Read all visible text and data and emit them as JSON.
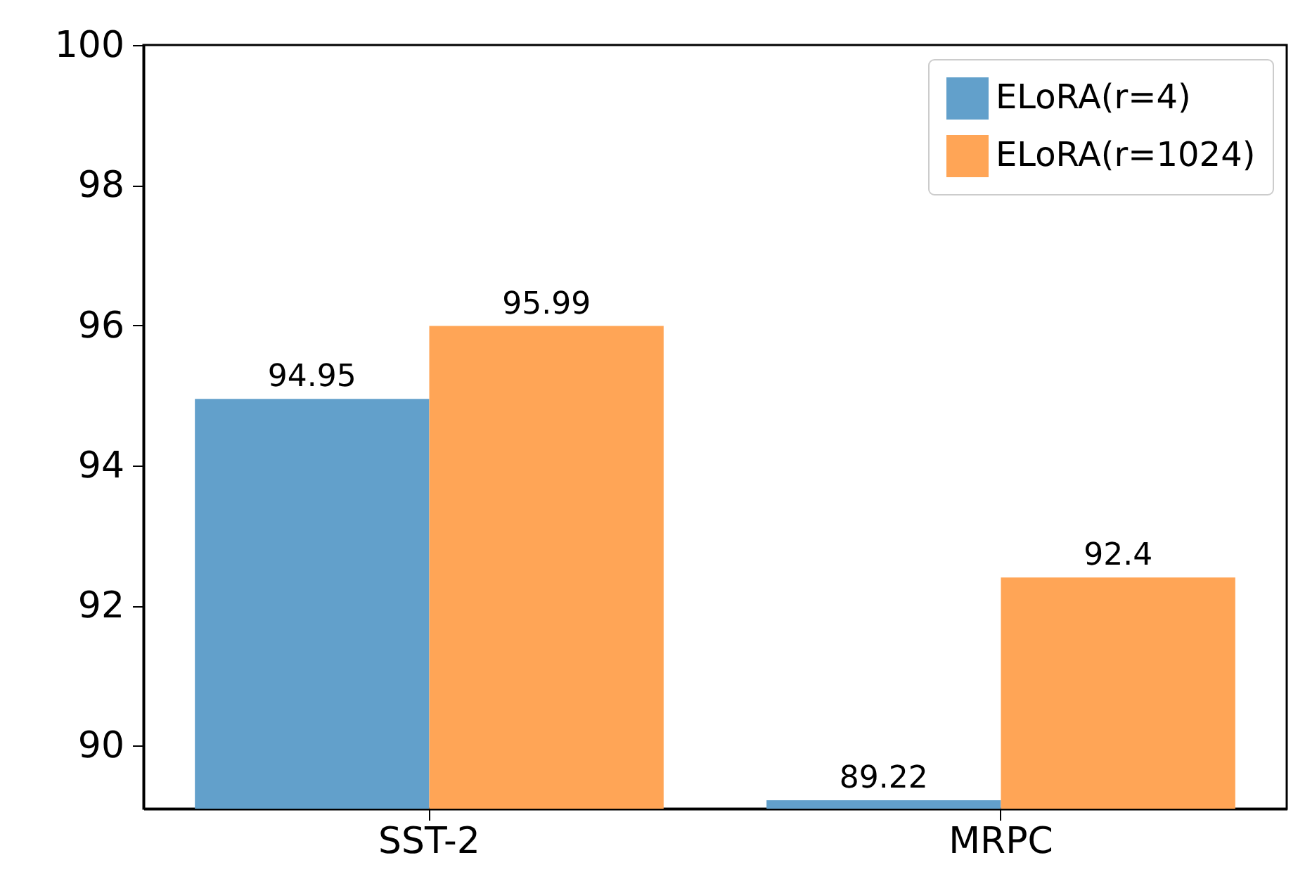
{
  "chart_data": {
    "type": "bar",
    "categories": [
      "SST-2",
      "MRPC"
    ],
    "series": [
      {
        "name": "ELoRA(r=4)",
        "color": "#62a0cb",
        "values": [
          94.95,
          89.22
        ]
      },
      {
        "name": "ELoRA(r=1024)",
        "color": "#ffa556",
        "values": [
          95.99,
          92.4
        ]
      }
    ],
    "ylim": [
      89.1,
      100
    ],
    "yticks": [
      90,
      92,
      94,
      96,
      98,
      100
    ],
    "data_labels": true,
    "legend": "top right",
    "grid": false
  }
}
